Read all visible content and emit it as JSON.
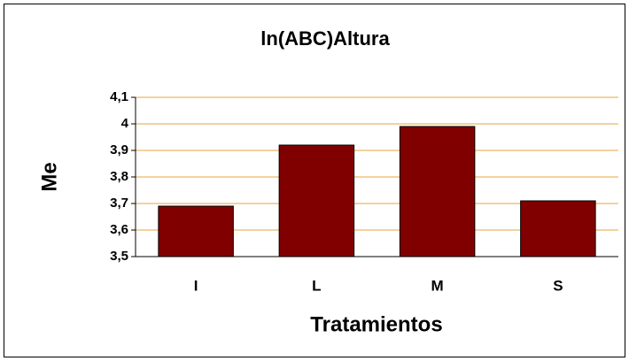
{
  "chart_data": {
    "type": "bar",
    "title": "ln(ABC)Altura",
    "x_label": "Tratamientos",
    "y_label": "Me",
    "categories": [
      "I",
      "L",
      "M",
      "S"
    ],
    "values": [
      3.69,
      3.92,
      3.99,
      3.71
    ],
    "color": "#800000",
    "ylim": [
      3.5,
      4.1
    ],
    "yticks": [
      {
        "value": 3.5,
        "label": "3,5"
      },
      {
        "value": 3.6,
        "label": "3,6"
      },
      {
        "value": 3.7,
        "label": "3,7"
      },
      {
        "value": 3.8,
        "label": "3,8"
      },
      {
        "value": 3.9,
        "label": "3,9"
      },
      4,
      {
        "value": 4.1,
        "label": "4,1"
      }
    ],
    "grid": true
  }
}
